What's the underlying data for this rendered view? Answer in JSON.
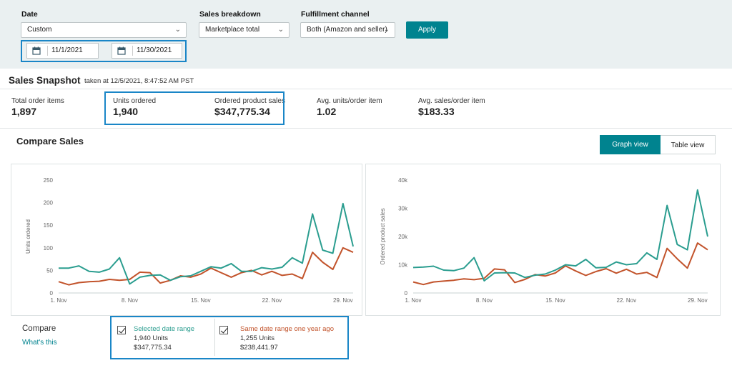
{
  "filters": {
    "date_label": "Date",
    "date_value": "Custom",
    "start_date": "11/1/2021",
    "end_date": "11/30/2021",
    "breakdown_label": "Sales breakdown",
    "breakdown_value": "Marketplace total",
    "channel_label": "Fulfillment channel",
    "channel_value": "Both (Amazon and seller)",
    "apply_label": "Apply"
  },
  "snapshot": {
    "title": "Sales Snapshot",
    "taken": "taken at 12/5/2021, 8:47:52 AM PST",
    "metrics": [
      {
        "label": "Total order items",
        "value": "1,897"
      },
      {
        "label": "Units ordered",
        "value": "1,940"
      },
      {
        "label": "Ordered product sales",
        "value": "$347,775.34"
      },
      {
        "label": "Avg. units/order item",
        "value": "1.02"
      },
      {
        "label": "Avg. sales/order item",
        "value": "$183.33"
      }
    ]
  },
  "compare_sales": {
    "title": "Compare Sales",
    "graph_view_label": "Graph view",
    "table_view_label": "Table view"
  },
  "compare": {
    "label": "Compare",
    "link": "What's this",
    "selected": {
      "label": "Selected date range",
      "units": "1,940 Units",
      "sales": "$347,775.34",
      "color": "#2a9d8f"
    },
    "previous": {
      "label": "Same date range one year ago",
      "units": "1,255 Units",
      "sales": "$238,441.97",
      "color": "#c2532b"
    }
  },
  "chart_data": [
    {
      "type": "line",
      "ylabel": "Units ordered",
      "xlabel": "",
      "ylim": [
        0,
        250
      ],
      "yticks": [
        0,
        50,
        100,
        150,
        200,
        250
      ],
      "ytick_labels": [
        "0",
        "50",
        "100",
        "150",
        "200",
        "250"
      ],
      "xtick_labels": [
        "1. Nov",
        "8. Nov",
        "15. Nov",
        "22. Nov",
        "29. Nov"
      ],
      "xtick_days": [
        1,
        8,
        15,
        22,
        29
      ],
      "x": [
        1,
        2,
        3,
        4,
        5,
        6,
        7,
        8,
        9,
        10,
        11,
        12,
        13,
        14,
        15,
        16,
        17,
        18,
        19,
        20,
        21,
        22,
        23,
        24,
        25,
        26,
        27,
        28,
        29,
        30
      ],
      "series": [
        {
          "name": "Selected date range",
          "color": "#2a9d8f",
          "values": [
            55,
            55,
            60,
            48,
            46,
            53,
            78,
            20,
            35,
            39,
            40,
            28,
            36,
            38,
            48,
            58,
            55,
            65,
            48,
            48,
            56,
            53,
            57,
            78,
            66,
            175,
            95,
            88,
            198,
            103
          ]
        },
        {
          "name": "Same date range one year ago",
          "color": "#c2532b",
          "values": [
            25,
            18,
            23,
            25,
            26,
            30,
            28,
            30,
            46,
            45,
            22,
            28,
            38,
            35,
            42,
            55,
            45,
            35,
            45,
            50,
            40,
            48,
            39,
            42,
            32,
            90,
            68,
            52,
            100,
            90
          ]
        }
      ]
    },
    {
      "type": "line",
      "ylabel": "Ordered product sales",
      "xlabel": "",
      "ylim": [
        0,
        40000
      ],
      "yticks": [
        0,
        10000,
        20000,
        30000,
        40000
      ],
      "ytick_labels": [
        "0",
        "10k",
        "20k",
        "30k",
        "40k"
      ],
      "xtick_labels": [
        "1. Nov",
        "8. Nov",
        "15. Nov",
        "22. Nov",
        "29. Nov"
      ],
      "xtick_days": [
        1,
        8,
        15,
        22,
        29
      ],
      "x": [
        1,
        2,
        3,
        4,
        5,
        6,
        7,
        8,
        9,
        10,
        11,
        12,
        13,
        14,
        15,
        16,
        17,
        18,
        19,
        20,
        21,
        22,
        23,
        24,
        25,
        26,
        27,
        28,
        29,
        30
      ],
      "series": [
        {
          "name": "Selected date range",
          "color": "#2a9d8f",
          "values": [
            9000,
            9200,
            9500,
            8100,
            7900,
            8800,
            12500,
            4300,
            7100,
            7200,
            7100,
            5500,
            6300,
            6700,
            8100,
            10000,
            9600,
            11900,
            8900,
            9100,
            11000,
            10000,
            10400,
            14200,
            11900,
            31000,
            17200,
            15300,
            36500,
            20000
          ]
        },
        {
          "name": "Same date range one year ago",
          "color": "#c2532b",
          "values": [
            3900,
            3000,
            3900,
            4200,
            4500,
            5000,
            4700,
            5200,
            8500,
            8200,
            3700,
            4800,
            6500,
            6000,
            7100,
            9600,
            7800,
            6200,
            7600,
            8600,
            7000,
            8400,
            6700,
            7300,
            5500,
            15800,
            12100,
            8800,
            17700,
            15300
          ]
        }
      ]
    }
  ]
}
